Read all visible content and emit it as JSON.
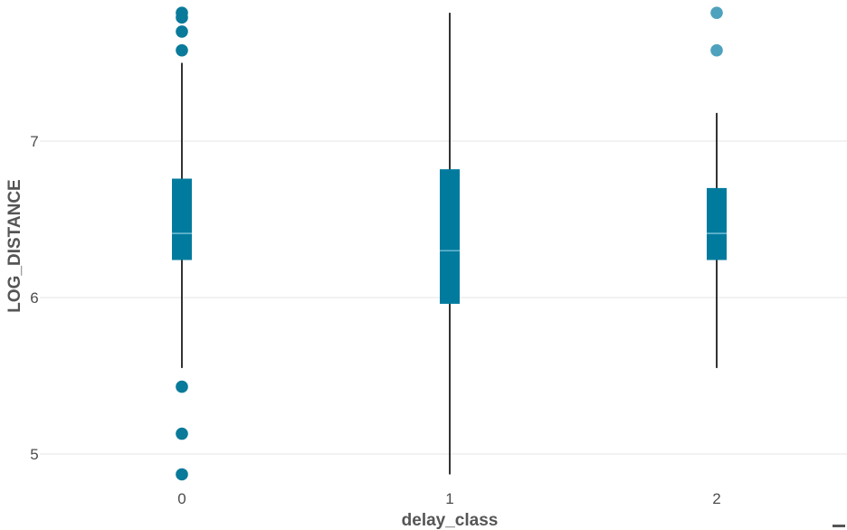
{
  "chart_data": {
    "type": "box",
    "title": "",
    "xlabel": "delay_class",
    "ylabel": "LOG_DISTANCE",
    "categories": [
      "0",
      "1",
      "2"
    ],
    "ylim": [
      4.8,
      7.88
    ],
    "yticks": [
      5,
      6,
      7
    ],
    "grid": true,
    "legend": "none",
    "colors": {
      "box": "#007b9e",
      "outlier": "#4ea2bd",
      "outlier_dense": "#0a7a9a",
      "median": "#7fc6dc",
      "whisker": "#000000",
      "grid": "#e6e6e6"
    },
    "boxes": [
      {
        "category": "0",
        "q1": 6.24,
        "median": 6.41,
        "q3": 6.76,
        "whisker_low": 5.55,
        "whisker_high": 7.5,
        "outliers": [
          7.82,
          7.79,
          7.7,
          7.58,
          5.43,
          5.13,
          4.87
        ]
      },
      {
        "category": "1",
        "q1": 5.96,
        "median": 6.3,
        "q3": 6.82,
        "whisker_low": 4.87,
        "whisker_high": 7.82,
        "outliers": []
      },
      {
        "category": "2",
        "q1": 6.24,
        "median": 6.41,
        "q3": 6.7,
        "whisker_low": 5.55,
        "whisker_high": 7.18,
        "outliers": [
          7.82,
          7.58
        ]
      }
    ]
  }
}
